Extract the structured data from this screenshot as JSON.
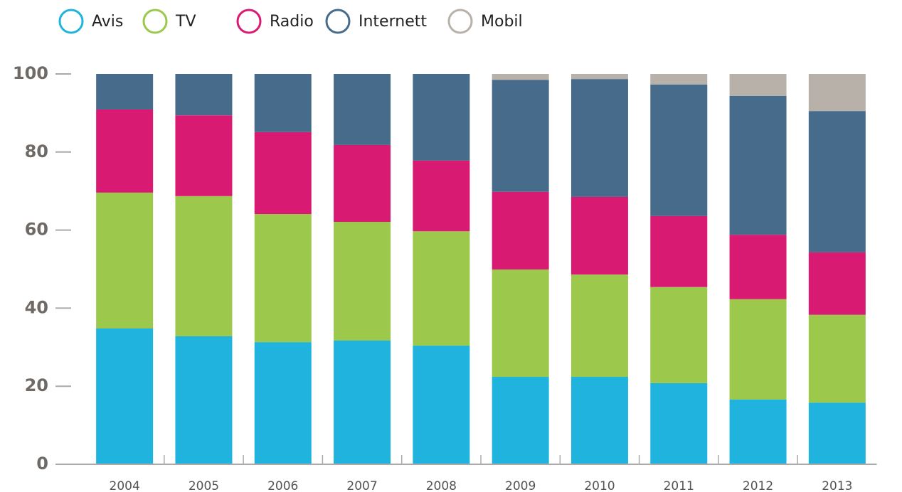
{
  "chart_data": {
    "type": "stacked_bar",
    "categories": [
      "2004",
      "2005",
      "2006",
      "2007",
      "2008",
      "2009",
      "2010",
      "2011",
      "2012",
      "2013"
    ],
    "series": [
      {
        "name": "Avis",
        "color": "#1fb3de",
        "values": [
          34.8,
          32.8,
          31.3,
          31.7,
          30.4,
          22.4,
          22.4,
          20.8,
          16.6,
          15.8
        ]
      },
      {
        "name": "TV",
        "color": "#9cc84b",
        "values": [
          34.8,
          35.9,
          32.8,
          30.4,
          29.3,
          27.5,
          26.2,
          24.6,
          25.7,
          22.5
        ]
      },
      {
        "name": "Radio",
        "color": "#d91a72",
        "values": [
          21.3,
          20.7,
          21.0,
          19.7,
          18.1,
          19.9,
          19.9,
          18.2,
          16.5,
          16.0
        ]
      },
      {
        "name": "Internett",
        "color": "#476b8a",
        "values": [
          9.1,
          10.6,
          14.9,
          18.2,
          22.2,
          28.7,
          30.2,
          33.7,
          35.6,
          36.2
        ]
      },
      {
        "name": "Mobil",
        "color": "#b7b1aa",
        "values": [
          0,
          0,
          0,
          0,
          0,
          1.5,
          1.3,
          2.7,
          5.6,
          9.5
        ]
      }
    ],
    "ylim": [
      0,
      100
    ],
    "yticks": [
      0,
      20,
      40,
      60,
      80,
      100
    ],
    "legend": "top-left"
  }
}
